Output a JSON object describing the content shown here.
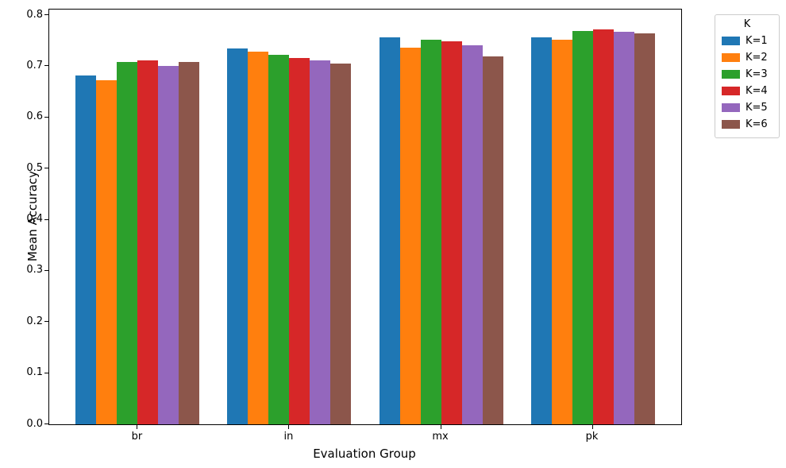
{
  "figure": {
    "background": "#ffffff",
    "spine_color": "#000000",
    "text_color": "#000000"
  },
  "chart_data": {
    "type": "bar",
    "title": "",
    "xlabel": "Evaluation Group",
    "ylabel": "Mean Accuracy",
    "categories": [
      "br",
      "in",
      "mx",
      "pk"
    ],
    "series": [
      {
        "name": "K=1",
        "color": "#1f77b4",
        "values": [
          0.682,
          0.735,
          0.757,
          0.756
        ]
      },
      {
        "name": "K=2",
        "color": "#ff7f0e",
        "values": [
          0.673,
          0.728,
          0.737,
          0.752
        ]
      },
      {
        "name": "K=3",
        "color": "#2ca02c",
        "values": [
          0.709,
          0.722,
          0.752,
          0.769
        ]
      },
      {
        "name": "K=4",
        "color": "#d62728",
        "values": [
          0.712,
          0.716,
          0.749,
          0.772
        ]
      },
      {
        "name": "K=5",
        "color": "#9467bd",
        "values": [
          0.701,
          0.711,
          0.741,
          0.768
        ]
      },
      {
        "name": "K=6",
        "color": "#8c564b",
        "values": [
          0.709,
          0.706,
          0.719,
          0.764
        ]
      }
    ],
    "ytick_labels": [
      "0.0",
      "0.1",
      "0.2",
      "0.3",
      "0.4",
      "0.5",
      "0.6",
      "0.7",
      "0.8"
    ],
    "yticks": [
      0.0,
      0.1,
      0.2,
      0.3,
      0.4,
      0.5,
      0.6,
      0.7,
      0.8
    ],
    "ylim": [
      0.0,
      0.811
    ],
    "grid": false,
    "legend": {
      "title": "K",
      "entries": [
        "K=1",
        "K=2",
        "K=3",
        "K=4",
        "K=5",
        "K=6"
      ],
      "position": "upper-right-outside"
    }
  }
}
